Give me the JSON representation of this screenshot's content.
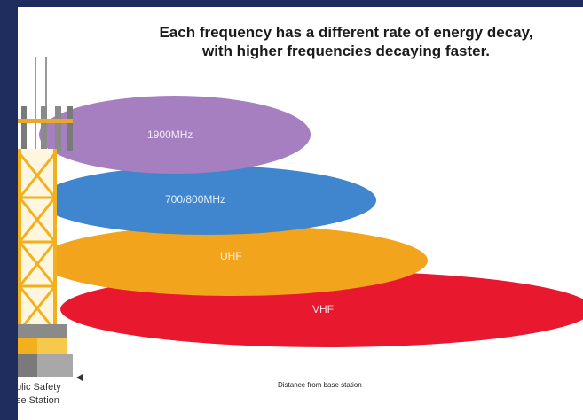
{
  "title": {
    "line1": "Each frequency has a different rate of energy decay,",
    "line2": "with higher frequencies decaying faster."
  },
  "bands": [
    {
      "label": "1900MHz",
      "color": "#a57fc0"
    },
    {
      "label": "700/800MHz",
      "color": "#3f86cf"
    },
    {
      "label": "UHF",
      "color": "#f2a51c"
    },
    {
      "label": "VHF",
      "color": "#e8192f"
    }
  ],
  "axis": {
    "label": "Distance from base station"
  },
  "station": {
    "line1": "blic Safety",
    "line2": "se Station"
  }
}
